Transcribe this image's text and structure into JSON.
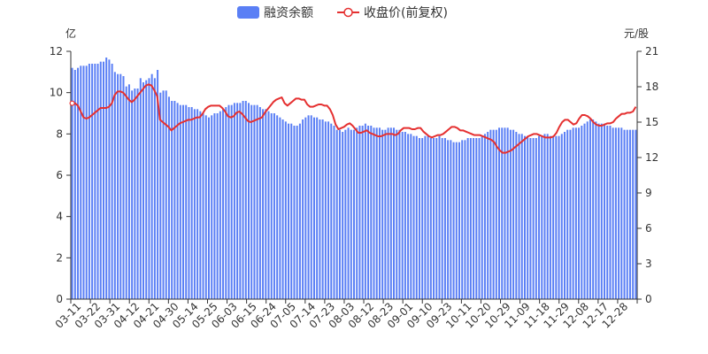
{
  "chart_data": {
    "type": "bar+line",
    "legend_placement": "top-center",
    "grid": false,
    "colors": {
      "bar": "#5a7ff5",
      "line": "#e53030",
      "axis": "#333333"
    },
    "legend": [
      {
        "name": "融资余额",
        "icon": "rect"
      },
      {
        "name": "收盘价(前复权)",
        "icon": "line-circle"
      }
    ],
    "left_axis": {
      "unit": "亿",
      "min": 0,
      "max": 12,
      "ticks": [
        "0",
        "2",
        "4",
        "6",
        "8",
        "10",
        "12"
      ]
    },
    "right_axis": {
      "unit": "元/股",
      "min": 0,
      "max": 21,
      "ticks": [
        "0",
        "3",
        "6",
        "9",
        "12",
        "15",
        "18",
        "21"
      ]
    },
    "x_labels": [
      "03-11",
      "03-22",
      "03-31",
      "04-12",
      "04-21",
      "04-30",
      "05-14",
      "05-25",
      "06-03",
      "06-15",
      "06-24",
      "07-05",
      "07-14",
      "07-23",
      "08-03",
      "08-12",
      "08-23",
      "09-01",
      "09-10",
      "09-23",
      "10-11",
      "10-20",
      "10-29",
      "11-09",
      "11-18",
      "11-29",
      "12-08",
      "12-17",
      "12-28"
    ],
    "bar_values": [
      11.2,
      11.1,
      11.2,
      11.3,
      11.3,
      11.3,
      11.4,
      11.4,
      11.4,
      11.4,
      11.5,
      11.5,
      11.7,
      11.6,
      11.4,
      11.0,
      10.9,
      10.9,
      10.8,
      10.3,
      10.4,
      10.1,
      10.2,
      10.2,
      10.7,
      10.5,
      10.6,
      10.7,
      10.9,
      10.7,
      11.1,
      10.0,
      10.1,
      10.1,
      9.8,
      9.6,
      9.6,
      9.5,
      9.4,
      9.4,
      9.4,
      9.3,
      9.3,
      9.2,
      9.2,
      9.1,
      9.0,
      8.9,
      8.8,
      8.9,
      9.0,
      9.0,
      9.1,
      9.2,
      9.3,
      9.4,
      9.4,
      9.5,
      9.5,
      9.5,
      9.6,
      9.6,
      9.5,
      9.4,
      9.4,
      9.4,
      9.3,
      9.2,
      9.2,
      9.1,
      9.0,
      9.0,
      8.9,
      8.8,
      8.7,
      8.6,
      8.5,
      8.5,
      8.4,
      8.4,
      8.5,
      8.7,
      8.8,
      8.9,
      8.9,
      8.8,
      8.8,
      8.7,
      8.7,
      8.6,
      8.6,
      8.5,
      8.4,
      8.2,
      8.2,
      8.1,
      8.2,
      8.3,
      8.2,
      8.2,
      8.3,
      8.4,
      8.4,
      8.5,
      8.4,
      8.4,
      8.3,
      8.3,
      8.3,
      8.2,
      8.2,
      8.3,
      8.3,
      8.3,
      8.2,
      8.2,
      8.1,
      8.1,
      8.0,
      8.0,
      7.9,
      7.9,
      7.8,
      7.8,
      7.9,
      7.9,
      7.8,
      7.8,
      7.8,
      7.9,
      7.8,
      7.8,
      7.7,
      7.7,
      7.6,
      7.6,
      7.6,
      7.7,
      7.7,
      7.8,
      7.8,
      7.8,
      7.8,
      7.8,
      7.9,
      8.0,
      8.1,
      8.2,
      8.2,
      8.2,
      8.3,
      8.3,
      8.3,
      8.3,
      8.2,
      8.2,
      8.1,
      8.0,
      8.0,
      7.9,
      7.9,
      7.8,
      7.8,
      7.8,
      7.9,
      7.9,
      8.0,
      8.0,
      7.9,
      7.9,
      7.9,
      7.9,
      8.0,
      8.1,
      8.2,
      8.2,
      8.3,
      8.3,
      8.3,
      8.4,
      8.5,
      8.6,
      8.7,
      8.7,
      8.6,
      8.5,
      8.5,
      8.5,
      8.4,
      8.4,
      8.3,
      8.3,
      8.3,
      8.3,
      8.2,
      8.2,
      8.2,
      8.2,
      8.2
    ],
    "line_values": [
      16.6,
      16.6,
      16.4,
      15.9,
      15.4,
      15.3,
      15.4,
      15.6,
      15.8,
      16.0,
      16.2,
      16.2,
      16.2,
      16.3,
      16.6,
      17.3,
      17.6,
      17.6,
      17.5,
      17.2,
      16.9,
      16.7,
      16.9,
      17.2,
      17.5,
      17.8,
      18.1,
      18.2,
      18.1,
      17.7,
      17.2,
      15.2,
      15.0,
      14.8,
      14.6,
      14.3,
      14.5,
      14.7,
      14.9,
      15.0,
      15.1,
      15.2,
      15.2,
      15.3,
      15.4,
      15.4,
      15.7,
      16.1,
      16.3,
      16.4,
      16.4,
      16.4,
      16.4,
      16.2,
      15.9,
      15.5,
      15.4,
      15.5,
      15.8,
      15.9,
      15.7,
      15.4,
      15.1,
      15.0,
      15.1,
      15.2,
      15.3,
      15.4,
      15.8,
      16.1,
      16.4,
      16.7,
      16.9,
      17.0,
      17.1,
      16.6,
      16.4,
      16.6,
      16.8,
      17.0,
      17.0,
      16.9,
      16.9,
      16.5,
      16.3,
      16.3,
      16.4,
      16.5,
      16.5,
      16.4,
      16.4,
      16.1,
      15.6,
      14.8,
      14.4,
      14.5,
      14.6,
      14.8,
      14.9,
      14.7,
      14.4,
      14.1,
      14.1,
      14.2,
      14.3,
      14.1,
      14.0,
      13.9,
      13.8,
      13.8,
      13.9,
      14.0,
      14.0,
      14.0,
      13.9,
      14.0,
      14.3,
      14.5,
      14.5,
      14.5,
      14.4,
      14.4,
      14.5,
      14.5,
      14.2,
      14.0,
      13.8,
      13.7,
      13.8,
      13.9,
      13.9,
      14.0,
      14.2,
      14.4,
      14.6,
      14.6,
      14.5,
      14.3,
      14.3,
      14.2,
      14.1,
      14.0,
      13.9,
      13.9,
      13.9,
      13.8,
      13.7,
      13.6,
      13.5,
      13.3,
      12.9,
      12.6,
      12.4,
      12.4,
      12.5,
      12.6,
      12.8,
      13.0,
      13.2,
      13.4,
      13.6,
      13.8,
      13.9,
      14.0,
      14.0,
      13.9,
      13.8,
      13.7,
      13.7,
      13.7,
      13.8,
      14.1,
      14.6,
      15.0,
      15.2,
      15.2,
      15.0,
      14.8,
      14.9,
      15.3,
      15.6,
      15.6,
      15.5,
      15.3,
      15.0,
      14.8,
      14.7,
      14.7,
      14.8,
      14.9,
      14.9,
      15.0,
      15.3,
      15.5,
      15.7,
      15.7,
      15.8,
      15.8,
      15.9,
      16.3
    ]
  }
}
